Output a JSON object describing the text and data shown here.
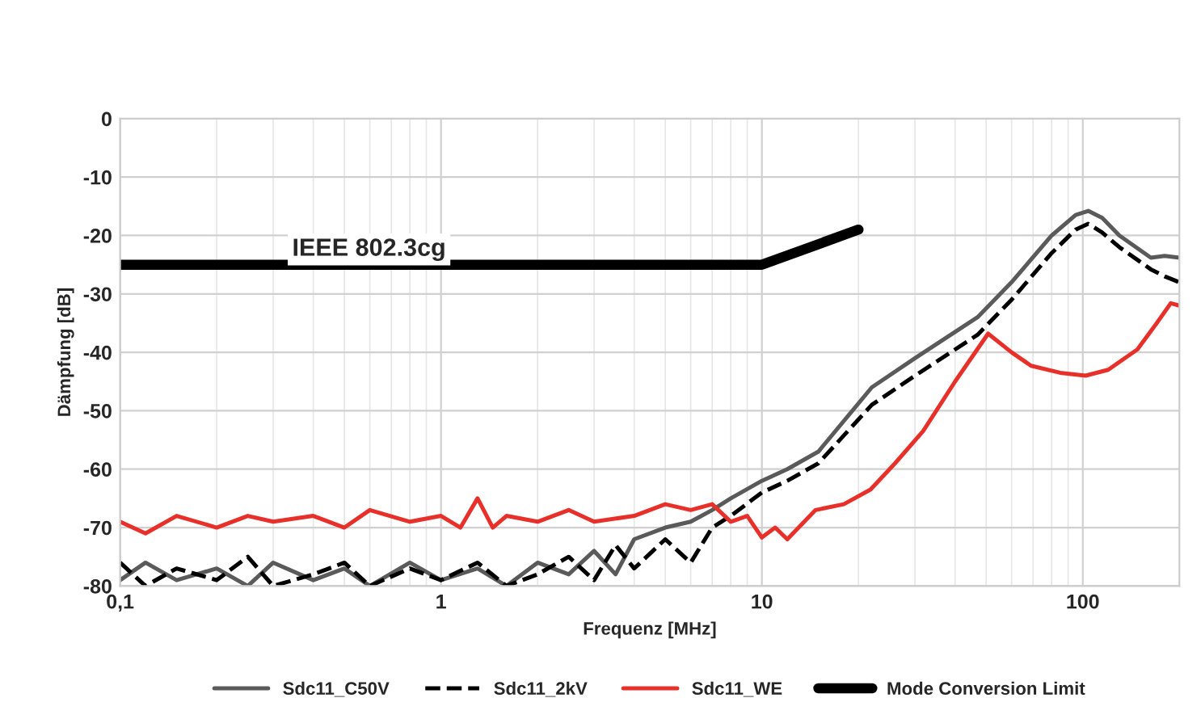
{
  "chart_data": {
    "type": "line",
    "xlabel": "Frequenz [MHz]",
    "ylabel": "Dämpfung [dB]",
    "log": "x",
    "xlim": [
      0.1,
      200
    ],
    "xticks": [
      {
        "value": 0.1,
        "label": "0,1"
      },
      1,
      10,
      100
    ],
    "ylim": [
      -80,
      0
    ],
    "yticks": [
      -80,
      -70,
      -60,
      -50,
      -40,
      -30,
      -20,
      -10,
      0
    ],
    "grid": true,
    "legend": "bottom",
    "annotations": [
      "IEEE 802.3cg"
    ],
    "series": [
      {
        "name": "Sdc11_C50V",
        "color": "#5a5a5a",
        "line_style": "solid",
        "x": [
          0.1,
          0.12,
          0.15,
          0.2,
          0.25,
          0.3,
          0.4,
          0.5,
          0.6,
          0.8,
          1,
          1.3,
          1.6,
          2,
          2.5,
          3,
          3.5,
          4,
          5,
          6,
          7,
          8,
          10,
          12,
          15,
          22,
          30,
          47,
          60,
          80,
          95,
          104,
          115,
          130,
          163,
          180,
          200
        ],
        "values": [
          -79,
          -76,
          -79,
          -77,
          -80,
          -76,
          -79,
          -77,
          -80,
          -76,
          -79,
          -77,
          -80,
          -76,
          -78,
          -74,
          -78,
          -72,
          -70,
          -69,
          -67,
          -65,
          -62,
          -60,
          -57,
          -46,
          -41,
          -34,
          -28,
          -20,
          -16.5,
          -15.8,
          -17,
          -20,
          -23.8,
          -23.5,
          -23.8
        ]
      },
      {
        "name": "Sdc11_2kV",
        "color": "#000000",
        "line_style": "dashed",
        "x": [
          0.1,
          0.12,
          0.15,
          0.2,
          0.25,
          0.3,
          0.4,
          0.5,
          0.6,
          0.8,
          1,
          1.3,
          1.6,
          2,
          2.5,
          3,
          3.5,
          4,
          5,
          6,
          7,
          8,
          10,
          12,
          15,
          22,
          30,
          47,
          60,
          80,
          95,
          104,
          115,
          130,
          163,
          180,
          200
        ],
        "values": [
          -76,
          -80,
          -77,
          -79,
          -75,
          -80,
          -78,
          -76,
          -80,
          -77,
          -79,
          -76,
          -80,
          -78,
          -75,
          -79,
          -73,
          -77,
          -72,
          -76,
          -70,
          -68,
          -64,
          -62,
          -59,
          -49,
          -44,
          -37,
          -31,
          -23,
          -19,
          -18,
          -19.5,
          -22,
          -25.8,
          -27,
          -28
        ]
      },
      {
        "name": "Sdc11_WE",
        "color": "#e8302a",
        "line_style": "solid",
        "x": [
          0.1,
          0.12,
          0.15,
          0.2,
          0.25,
          0.3,
          0.4,
          0.5,
          0.6,
          0.8,
          1,
          1.15,
          1.3,
          1.45,
          1.6,
          2,
          2.5,
          3,
          4,
          5,
          6,
          7,
          8,
          9,
          10,
          11,
          12,
          14.7,
          18,
          21.8,
          26,
          31.8,
          40,
          50.7,
          60,
          69,
          85,
          102,
          120,
          148,
          170,
          188,
          200
        ],
        "values": [
          -69,
          -71,
          -68,
          -70,
          -68,
          -69,
          -68,
          -70,
          -67,
          -69,
          -68,
          -70,
          -65,
          -70,
          -68,
          -69,
          -67,
          -69,
          -68,
          -66,
          -67,
          -66,
          -69,
          -68,
          -71.7,
          -70,
          -72,
          -67,
          -66,
          -63.5,
          -59,
          -53.5,
          -45,
          -36.8,
          -40,
          -42.3,
          -43.5,
          -44,
          -43,
          -39.5,
          -35,
          -31.6,
          -32
        ]
      },
      {
        "name": "Mode Conversion Limit",
        "color": "#000000",
        "line_style": "solid",
        "x": [
          0.1,
          10,
          20
        ],
        "values": [
          -25,
          -25,
          -19
        ]
      }
    ]
  }
}
